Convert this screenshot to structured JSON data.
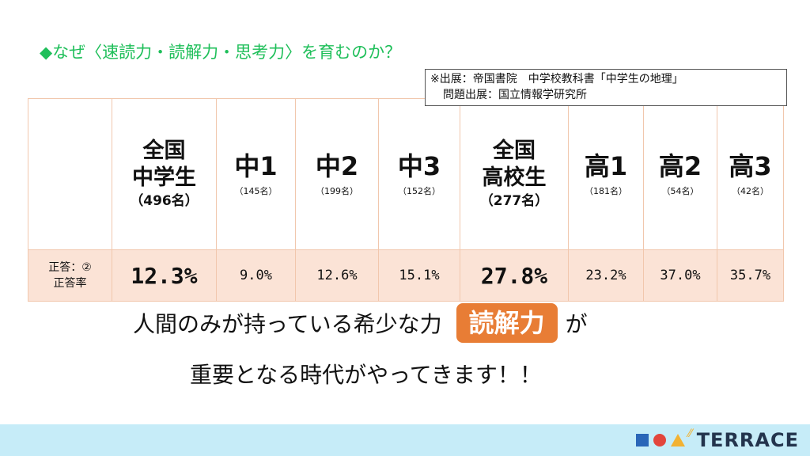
{
  "title": "◆なぜ〈速読力・読解力・思考力〉を育むのか？",
  "source": {
    "line1": "※出展：帝国書院　中学校教科書「中学生の地理」",
    "line2": "問題出展：国立情報学研究所"
  },
  "table": {
    "columns": [
      {
        "line1": "全国",
        "line2": "中学生",
        "count": "（496名）"
      },
      {
        "name": "中1",
        "count": "（145名）"
      },
      {
        "name": "中2",
        "count": "（199名）"
      },
      {
        "name": "中3",
        "count": "（152名）"
      },
      {
        "line1": "全国",
        "line2": "高校生",
        "count": "（277名）"
      },
      {
        "name": "高1",
        "count": "（181名）"
      },
      {
        "name": "高2",
        "count": "（54名）"
      },
      {
        "name": "高3",
        "count": "（42名）"
      }
    ],
    "row_label_line1": "正答：②",
    "row_label_line2": "正答率",
    "values": [
      "12.3%",
      "9.0%",
      "12.6%",
      "15.1%",
      "27.8%",
      "23.2%",
      "37.0%",
      "35.7%"
    ]
  },
  "message": {
    "line1_prefix": "人間のみが持っている希少な力",
    "highlight": "読解力",
    "line1_suffix": "が",
    "line2": "重要となる時代がやってきます！！"
  },
  "logo": {
    "text": "TERRACE"
  },
  "colors": {
    "title": "#1fbf5a",
    "badge": "#e87d35",
    "row": "#fbe3d6",
    "footer": "#c6ecf8"
  }
}
